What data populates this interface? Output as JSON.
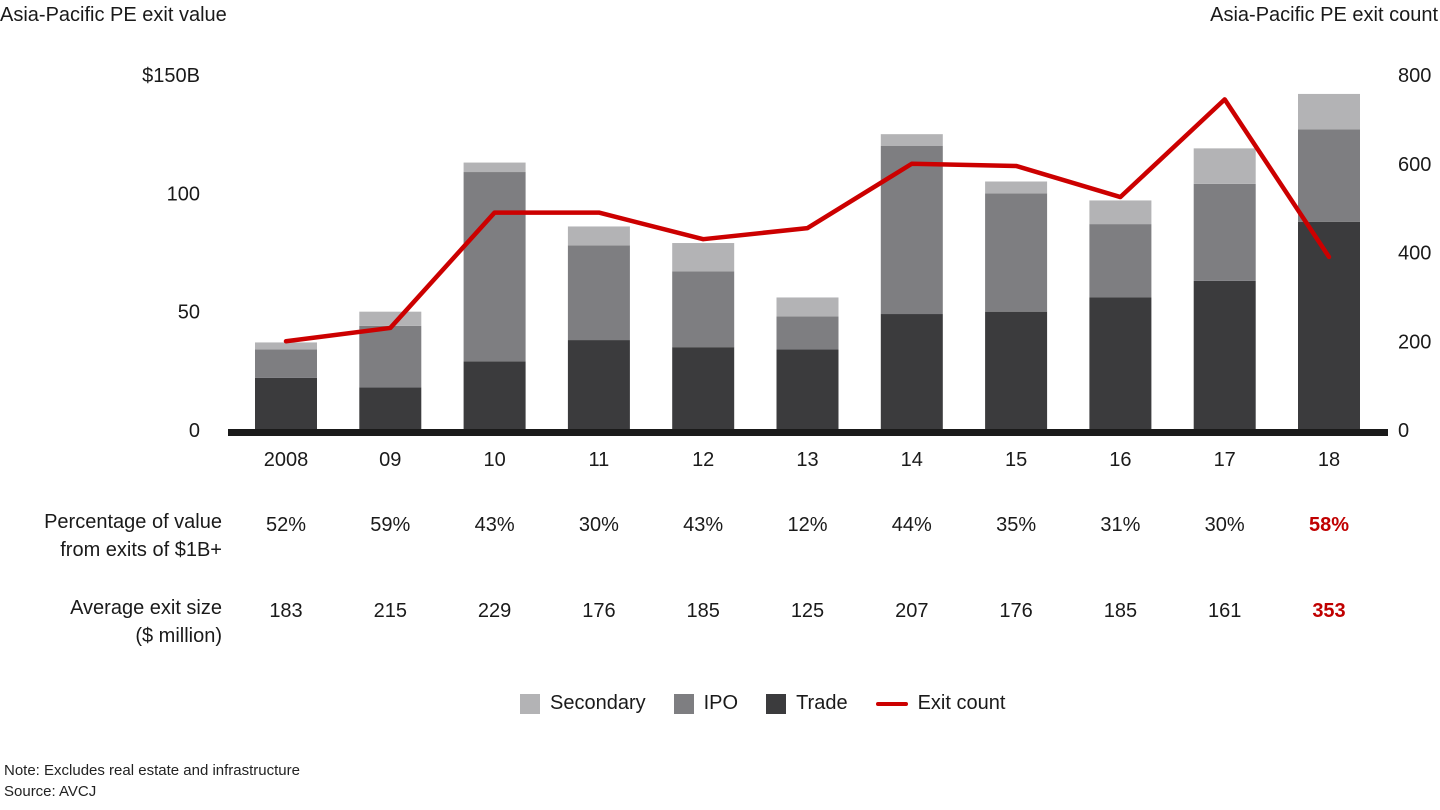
{
  "header": {
    "left_title": "Asia-Pacific PE exit value",
    "right_title": "Asia-Pacific PE exit count"
  },
  "chart_data": {
    "type": "bar",
    "subtype": "stacked-bar-with-line",
    "categories": [
      "2008",
      "09",
      "10",
      "11",
      "12",
      "13",
      "14",
      "15",
      "16",
      "17",
      "18"
    ],
    "bar_series": [
      {
        "name": "Trade",
        "color": "#3b3b3d",
        "values": [
          22,
          18,
          29,
          38,
          35,
          34,
          49,
          50,
          56,
          63,
          88
        ]
      },
      {
        "name": "IPO",
        "color": "#7e7e81",
        "values": [
          12,
          26,
          80,
          40,
          32,
          14,
          71,
          50,
          31,
          41,
          39
        ]
      },
      {
        "name": "Secondary",
        "color": "#b3b3b5",
        "values": [
          3,
          6,
          4,
          8,
          12,
          8,
          5,
          5,
          10,
          15,
          15
        ]
      }
    ],
    "line_series": {
      "name": "Exit count",
      "color": "#cc0000",
      "values": [
        200,
        230,
        490,
        490,
        430,
        455,
        600,
        595,
        525,
        745,
        390
      ]
    },
    "left_axis": {
      "max": 150,
      "tick_labels": [
        {
          "value": 0,
          "label": "0"
        },
        {
          "value": 50,
          "label": "50"
        },
        {
          "value": 100,
          "label": "100"
        },
        {
          "value": 150,
          "label": "$150B"
        }
      ]
    },
    "right_axis": {
      "max": 800,
      "tick_labels": [
        {
          "value": 0,
          "label": "0"
        },
        {
          "value": 200,
          "label": "200"
        },
        {
          "value": 400,
          "label": "400"
        },
        {
          "value": 600,
          "label": "600"
        },
        {
          "value": 800,
          "label": "800"
        }
      ]
    },
    "grid": false,
    "legend_position": "bottom"
  },
  "table": {
    "rows": [
      {
        "label_lines": [
          "Percentage of value",
          "from exits of $1B+"
        ],
        "values": [
          "52%",
          "59%",
          "43%",
          "30%",
          "43%",
          "12%",
          "44%",
          "35%",
          "31%",
          "30%",
          "58%"
        ],
        "highlight_last": true
      },
      {
        "label_lines": [
          "Average exit size",
          "($ million)"
        ],
        "values": [
          "183",
          "215",
          "229",
          "176",
          "185",
          "125",
          "207",
          "176",
          "185",
          "161",
          "353"
        ],
        "highlight_last": true
      }
    ]
  },
  "legend": [
    {
      "label": "Secondary",
      "color": "#b3b3b5",
      "marker": "square"
    },
    {
      "label": "IPO",
      "color": "#7e7e81",
      "marker": "square"
    },
    {
      "label": "Trade",
      "color": "#3b3b3d",
      "marker": "square"
    },
    {
      "label": "Exit count",
      "color": "#cc0000",
      "marker": "line"
    }
  ],
  "notes": [
    "Note: Excludes real estate and infrastructure",
    "Source: AVCJ"
  ],
  "colors": {
    "highlight_text": "#c00000",
    "axis_line": "#1a1a1a"
  }
}
